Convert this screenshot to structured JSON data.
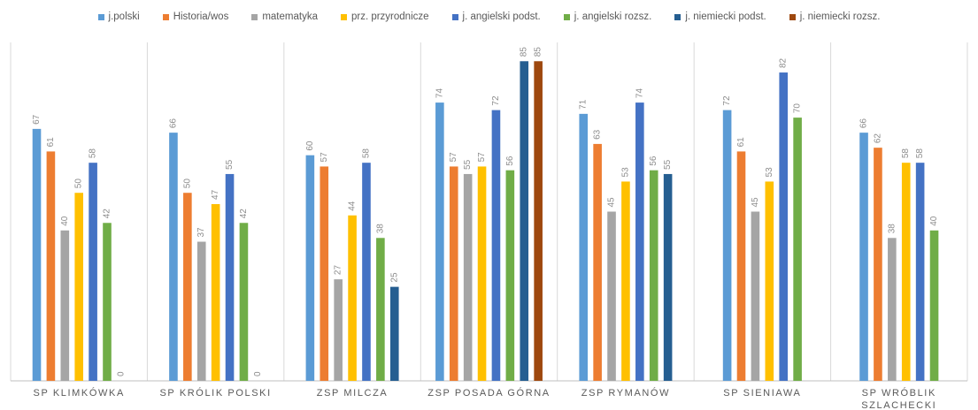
{
  "chart_data": {
    "type": "bar",
    "title": "",
    "xlabel": "",
    "ylabel": "",
    "ylim": [
      0,
      90
    ],
    "grid": false,
    "legend_position": "top",
    "categories": [
      "SP KLIMKÓWKA",
      "SP KRÓLIK POLSKI",
      "ZSP MILCZA",
      "ZSP POSADA GÓRNA",
      "ZSP RYMANÓW",
      "SP SIENIAWA",
      "SP WRÓBLIK SZLACHECKI"
    ],
    "series": [
      {
        "name": "j.polski",
        "color": "#5b9bd5",
        "values": [
          67,
          66,
          60,
          74,
          71,
          72,
          66
        ]
      },
      {
        "name": "Historia/wos",
        "color": "#ed7d31",
        "values": [
          61,
          50,
          57,
          57,
          63,
          61,
          62
        ]
      },
      {
        "name": "matematyka",
        "color": "#a5a5a5",
        "values": [
          40,
          37,
          27,
          55,
          45,
          45,
          38
        ]
      },
      {
        "name": "prz. przyrodnicze",
        "color": "#ffc000",
        "values": [
          50,
          47,
          44,
          57,
          53,
          53,
          58
        ]
      },
      {
        "name": "j. angielski podst.",
        "color": "#4472c4",
        "values": [
          58,
          55,
          58,
          72,
          74,
          82,
          58
        ]
      },
      {
        "name": "j. angielski rozsz.",
        "color": "#70ad47",
        "values": [
          42,
          42,
          38,
          56,
          56,
          70,
          40
        ]
      },
      {
        "name": "j. niemiecki podst.",
        "color": "#255e91",
        "values": [
          0,
          0,
          25,
          85,
          55,
          null,
          null
        ]
      },
      {
        "name": "j. niemiecki rozsz.",
        "color": "#9e480e",
        "values": [
          null,
          null,
          null,
          85,
          null,
          null,
          null
        ]
      }
    ]
  }
}
